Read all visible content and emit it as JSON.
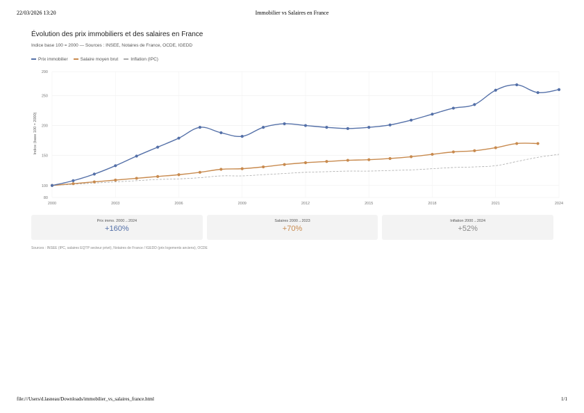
{
  "print": {
    "date": "22/03/2026 13:20",
    "title": "Immobilier vs Salaires en France",
    "path": "file:///Users/d.lasneau/Downloads/immobilier_vs_salaires_france.html",
    "page": "1/1"
  },
  "chart_data": {
    "type": "line",
    "title": "Évolution des prix immobiliers et des salaires en France",
    "subtitle": "Indice base 100 = 2000 — Sources : INSEE, Notaires de France, OCDE, IGEDD",
    "ylabel": "Indice (base 100 = 2000)",
    "xlabel": "",
    "xlim": [
      2000,
      2024
    ],
    "ylim": [
      80,
      290
    ],
    "x_ticks": [
      2000,
      2003,
      2006,
      2009,
      2012,
      2015,
      2018,
      2021,
      2024
    ],
    "y_ticks": [
      80,
      100,
      150,
      200,
      250,
      290
    ],
    "grid": true,
    "legend_position": "top-left",
    "series": [
      {
        "name": "Prix immobilier",
        "color": "#5470a8",
        "style": "solid",
        "markers": true,
        "x": [
          2000,
          2001,
          2002,
          2003,
          2004,
          2005,
          2006,
          2007,
          2008,
          2009,
          2010,
          2011,
          2012,
          2013,
          2014,
          2015,
          2016,
          2017,
          2018,
          2019,
          2020,
          2021,
          2022,
          2023,
          2024
        ],
        "values": [
          100,
          108,
          119,
          133,
          149,
          164,
          179,
          197,
          188,
          182,
          197,
          203,
          200,
          197,
          195,
          197,
          201,
          209,
          219,
          229,
          235,
          259,
          268,
          255,
          260
        ]
      },
      {
        "name": "Salaire moyen brut",
        "color": "#c88a4e",
        "style": "solid",
        "markers": true,
        "x": [
          2000,
          2001,
          2002,
          2003,
          2004,
          2005,
          2006,
          2007,
          2008,
          2009,
          2010,
          2011,
          2012,
          2013,
          2014,
          2015,
          2016,
          2017,
          2018,
          2019,
          2020,
          2021,
          2022,
          2023
        ],
        "values": [
          100,
          103,
          106,
          109,
          112,
          115,
          118,
          122,
          127,
          128,
          131,
          135,
          138,
          140,
          142,
          143,
          145,
          148,
          152,
          156,
          158,
          163,
          170,
          170
        ]
      },
      {
        "name": "Inflation (IPC)",
        "color": "#aaaaaa",
        "style": "dashed",
        "markers": false,
        "x": [
          2000,
          2001,
          2002,
          2003,
          2004,
          2005,
          2006,
          2007,
          2008,
          2009,
          2010,
          2011,
          2012,
          2013,
          2014,
          2015,
          2016,
          2017,
          2018,
          2019,
          2020,
          2021,
          2022,
          2023,
          2024
        ],
        "values": [
          100,
          102,
          104,
          106,
          108,
          110,
          111,
          113,
          116,
          116,
          118,
          120,
          122,
          123,
          124,
          124,
          125,
          126,
          128,
          130,
          131,
          133,
          140,
          147,
          152
        ]
      }
    ]
  },
  "stats": [
    {
      "label": "Prix immo. 2000→2024",
      "value": "+160%",
      "color": "#5470a8"
    },
    {
      "label": "Salaires 2000→2023",
      "value": "+70%",
      "color": "#c88a4e"
    },
    {
      "label": "Inflation 2000→2024",
      "value": "+52%",
      "color": "#888888"
    }
  ],
  "sources": "Sources : INSEE (IPC, salaires EQTP secteur privé), Notaires de France / IGEDD (prix logements anciens), OCDE"
}
